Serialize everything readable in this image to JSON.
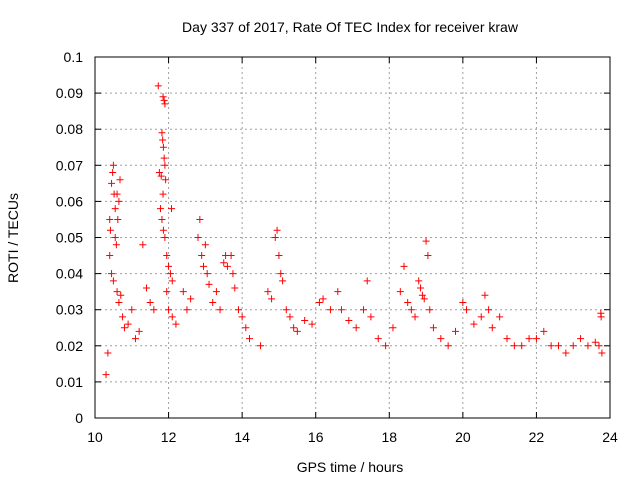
{
  "chart_data": {
    "type": "scatter",
    "title": "Day 337 of 2017, Rate Of TEC Index for receiver kraw",
    "xlabel": "GPS time / hours",
    "ylabel": "ROTI / TECUs",
    "xlim": [
      10,
      24
    ],
    "ylim": [
      0,
      0.1
    ],
    "grid": true,
    "legend": "none",
    "marker": "plus",
    "color": "#ff0000",
    "x_ticks": [
      "10",
      "12",
      "14",
      "16",
      "18",
      "20",
      "22",
      "24"
    ],
    "y_ticks": [
      "0",
      "0.01",
      "0.02",
      "0.03",
      "0.04",
      "0.05",
      "0.06",
      "0.07",
      "0.08",
      "0.09",
      "0.1"
    ],
    "series": [
      {
        "points": [
          [
            10.3,
            0.012
          ],
          [
            10.35,
            0.018
          ],
          [
            10.4,
            0.055
          ],
          [
            10.42,
            0.052
          ],
          [
            10.45,
            0.065
          ],
          [
            10.48,
            0.068
          ],
          [
            10.5,
            0.07
          ],
          [
            10.52,
            0.062
          ],
          [
            10.55,
            0.058
          ],
          [
            10.58,
            0.048
          ],
          [
            10.6,
            0.062
          ],
          [
            10.62,
            0.055
          ],
          [
            10.65,
            0.06
          ],
          [
            10.68,
            0.066
          ],
          [
            10.4,
            0.045
          ],
          [
            10.45,
            0.04
          ],
          [
            10.5,
            0.038
          ],
          [
            10.55,
            0.05
          ],
          [
            10.6,
            0.035
          ],
          [
            10.65,
            0.032
          ],
          [
            10.7,
            0.034
          ],
          [
            10.75,
            0.028
          ],
          [
            10.8,
            0.025
          ],
          [
            10.9,
            0.026
          ],
          [
            11.0,
            0.03
          ],
          [
            11.1,
            0.022
          ],
          [
            11.2,
            0.024
          ],
          [
            11.3,
            0.048
          ],
          [
            11.4,
            0.036
          ],
          [
            11.5,
            0.032
          ],
          [
            11.6,
            0.03
          ],
          [
            11.72,
            0.092
          ],
          [
            11.85,
            0.089
          ],
          [
            11.88,
            0.088
          ],
          [
            11.9,
            0.087
          ],
          [
            11.82,
            0.079
          ],
          [
            11.84,
            0.077
          ],
          [
            11.86,
            0.075
          ],
          [
            11.88,
            0.072
          ],
          [
            11.9,
            0.07
          ],
          [
            11.92,
            0.066
          ],
          [
            11.75,
            0.068
          ],
          [
            11.8,
            0.067
          ],
          [
            11.85,
            0.062
          ],
          [
            11.78,
            0.058
          ],
          [
            11.82,
            0.055
          ],
          [
            11.86,
            0.052
          ],
          [
            11.9,
            0.05
          ],
          [
            11.95,
            0.045
          ],
          [
            12.0,
            0.042
          ],
          [
            12.05,
            0.04
          ],
          [
            12.08,
            0.058
          ],
          [
            12.1,
            0.038
          ],
          [
            11.95,
            0.035
          ],
          [
            12.0,
            0.03
          ],
          [
            12.1,
            0.028
          ],
          [
            12.2,
            0.026
          ],
          [
            12.4,
            0.035
          ],
          [
            12.5,
            0.03
          ],
          [
            12.6,
            0.033
          ],
          [
            12.8,
            0.05
          ],
          [
            12.85,
            0.055
          ],
          [
            12.9,
            0.045
          ],
          [
            12.95,
            0.042
          ],
          [
            13.0,
            0.048
          ],
          [
            13.05,
            0.04
          ],
          [
            13.1,
            0.037
          ],
          [
            13.2,
            0.032
          ],
          [
            13.3,
            0.035
          ],
          [
            13.4,
            0.03
          ],
          [
            13.5,
            0.043
          ],
          [
            13.55,
            0.045
          ],
          [
            13.6,
            0.042
          ],
          [
            13.7,
            0.045
          ],
          [
            13.75,
            0.04
          ],
          [
            13.8,
            0.036
          ],
          [
            13.9,
            0.03
          ],
          [
            14.0,
            0.028
          ],
          [
            14.1,
            0.025
          ],
          [
            14.2,
            0.022
          ],
          [
            14.5,
            0.02
          ],
          [
            14.7,
            0.035
          ],
          [
            14.8,
            0.033
          ],
          [
            14.9,
            0.05
          ],
          [
            14.95,
            0.052
          ],
          [
            15.0,
            0.045
          ],
          [
            15.05,
            0.04
          ],
          [
            15.1,
            0.038
          ],
          [
            15.2,
            0.03
          ],
          [
            15.3,
            0.028
          ],
          [
            15.4,
            0.025
          ],
          [
            15.5,
            0.024
          ],
          [
            15.7,
            0.027
          ],
          [
            15.9,
            0.026
          ],
          [
            16.1,
            0.032
          ],
          [
            16.2,
            0.033
          ],
          [
            16.4,
            0.03
          ],
          [
            16.6,
            0.035
          ],
          [
            16.7,
            0.03
          ],
          [
            16.9,
            0.027
          ],
          [
            17.1,
            0.025
          ],
          [
            17.3,
            0.03
          ],
          [
            17.4,
            0.038
          ],
          [
            17.5,
            0.028
          ],
          [
            17.7,
            0.022
          ],
          [
            17.9,
            0.02
          ],
          [
            18.1,
            0.025
          ],
          [
            18.3,
            0.035
          ],
          [
            18.4,
            0.042
          ],
          [
            18.5,
            0.032
          ],
          [
            18.6,
            0.03
          ],
          [
            18.7,
            0.028
          ],
          [
            18.8,
            0.038
          ],
          [
            18.85,
            0.036
          ],
          [
            18.9,
            0.034
          ],
          [
            18.95,
            0.033
          ],
          [
            19.0,
            0.049
          ],
          [
            19.05,
            0.045
          ],
          [
            19.1,
            0.03
          ],
          [
            19.2,
            0.025
          ],
          [
            19.4,
            0.022
          ],
          [
            19.6,
            0.02
          ],
          [
            19.8,
            0.024
          ],
          [
            20.0,
            0.032
          ],
          [
            20.1,
            0.03
          ],
          [
            20.3,
            0.026
          ],
          [
            20.5,
            0.028
          ],
          [
            20.6,
            0.034
          ],
          [
            20.7,
            0.03
          ],
          [
            20.8,
            0.025
          ],
          [
            21.0,
            0.028
          ],
          [
            21.2,
            0.022
          ],
          [
            21.4,
            0.02
          ],
          [
            21.6,
            0.02
          ],
          [
            21.8,
            0.022
          ],
          [
            22.0,
            0.022
          ],
          [
            22.2,
            0.024
          ],
          [
            22.4,
            0.02
          ],
          [
            22.6,
            0.02
          ],
          [
            22.8,
            0.018
          ],
          [
            23.0,
            0.02
          ],
          [
            23.2,
            0.022
          ],
          [
            23.4,
            0.02
          ],
          [
            23.6,
            0.021
          ],
          [
            23.75,
            0.029
          ],
          [
            23.76,
            0.028
          ],
          [
            23.7,
            0.02
          ],
          [
            23.78,
            0.018
          ]
        ]
      }
    ]
  }
}
